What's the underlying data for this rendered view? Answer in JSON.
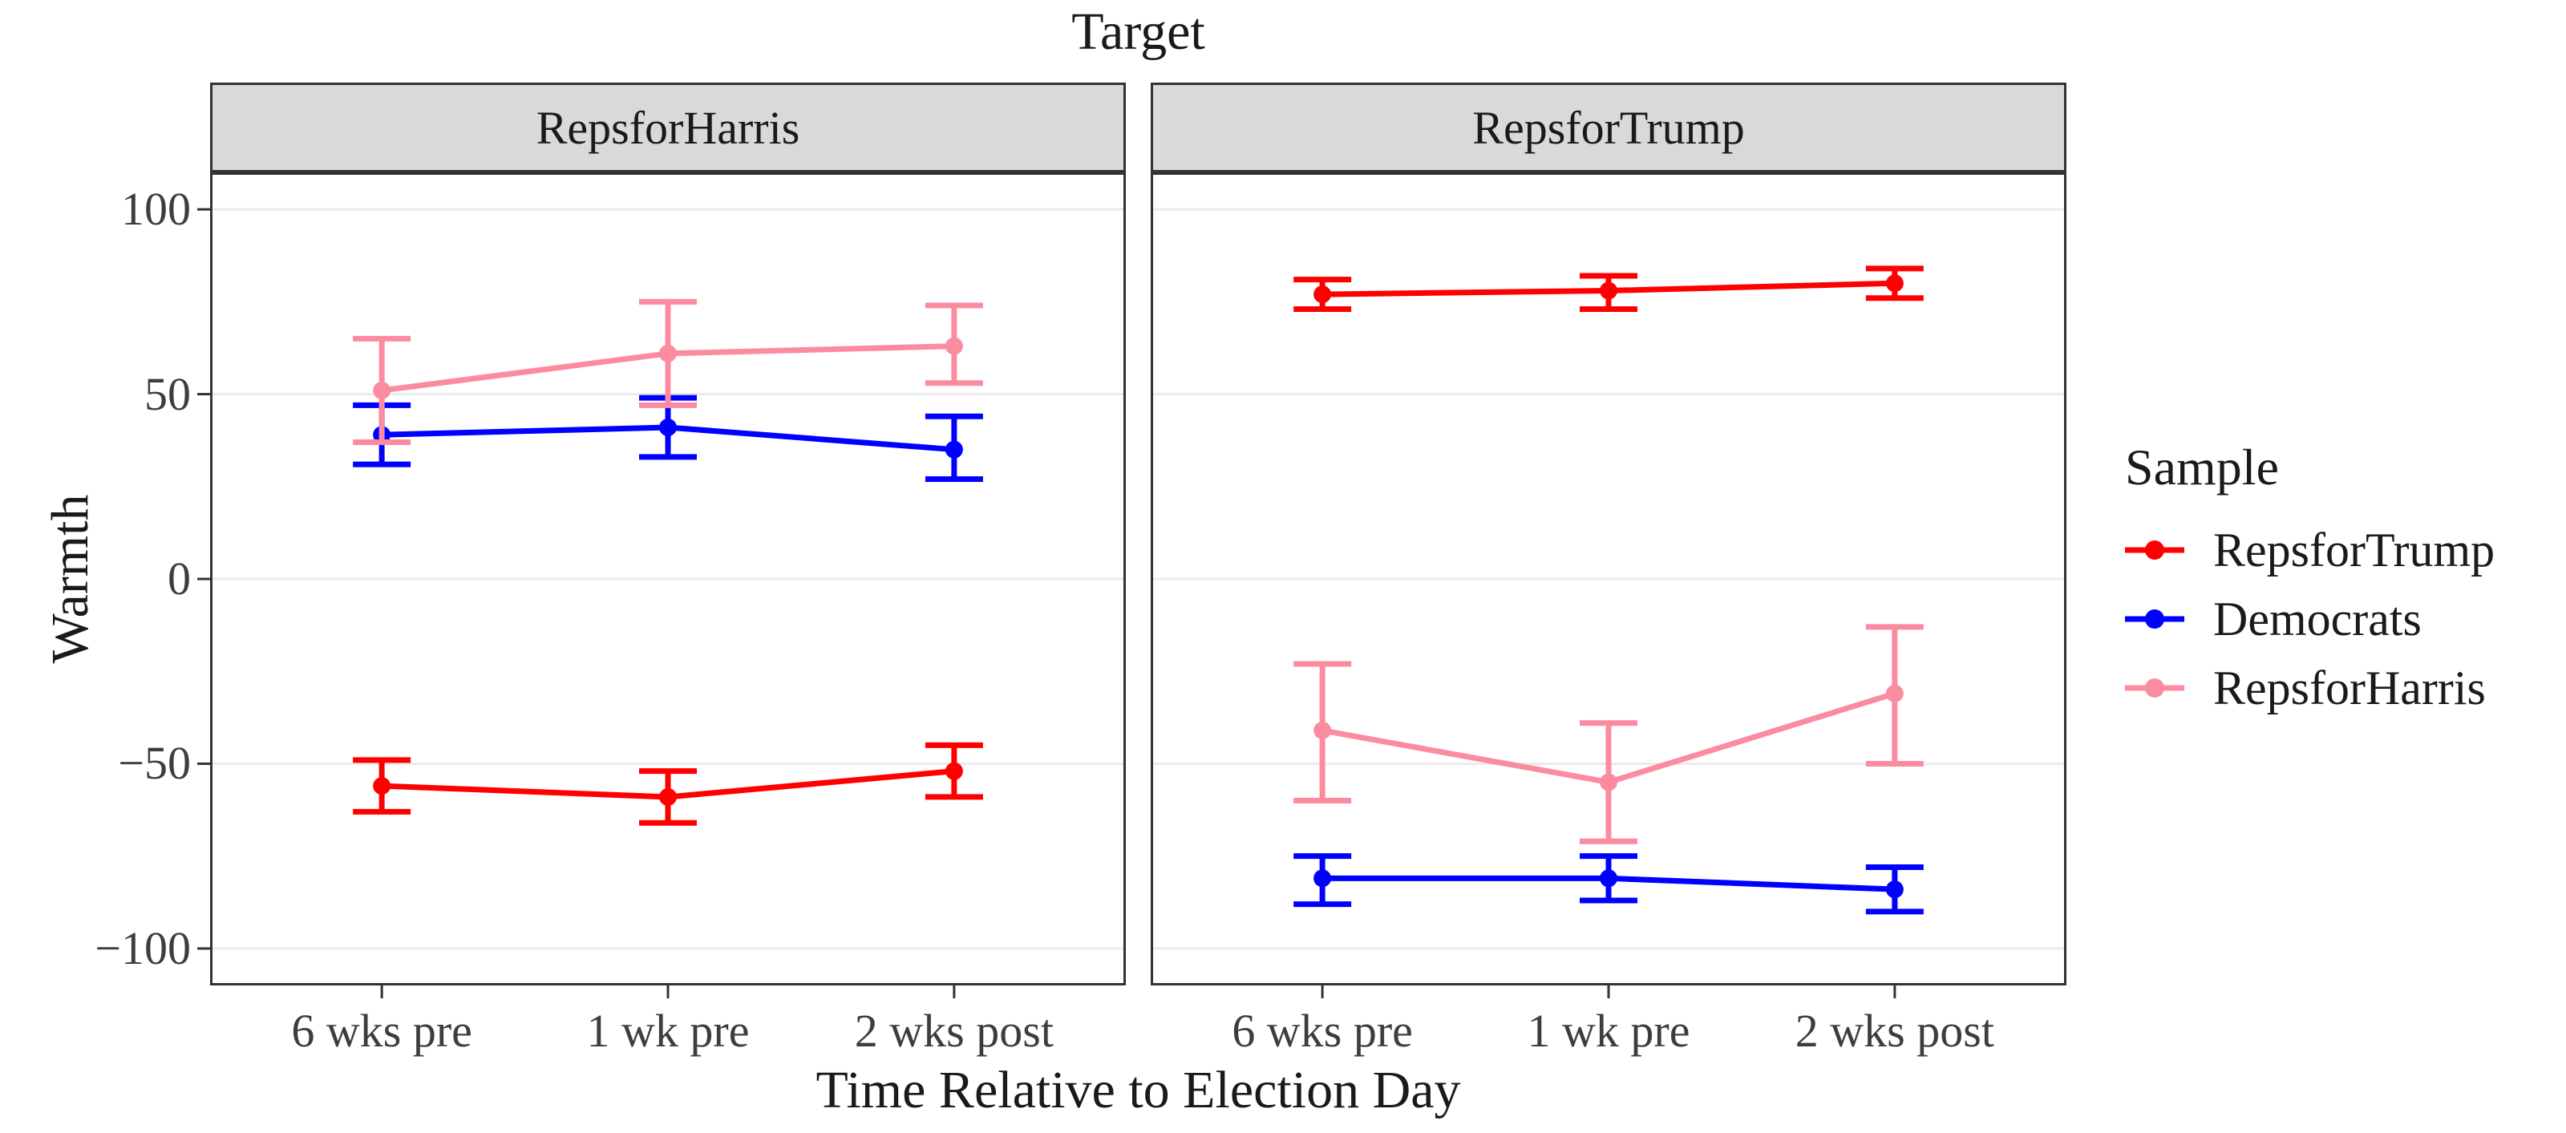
{
  "title": "Target",
  "axes": {
    "y": {
      "title": "Warmth",
      "ticks": [
        100,
        50,
        0,
        -50,
        -100
      ],
      "tick_labels": [
        "100",
        "50",
        "0",
        "−50",
        "−100"
      ]
    },
    "x": {
      "title": "Time Relative to Election Day",
      "categories": [
        "6 wks pre",
        "1 wk pre",
        "2 wks post"
      ]
    }
  },
  "legend": {
    "title": "Sample",
    "entries": [
      {
        "label": "RepsforTrump",
        "color": "#FF0000"
      },
      {
        "label": "Democrats",
        "color": "#0000FF"
      },
      {
        "label": "RepsforHarris",
        "color": "#FB8CA0"
      }
    ]
  },
  "colors": {
    "strip_fill": "#d9d9d9",
    "panel_border": "#333333",
    "gridline": "#ebebeb",
    "tick_mark": "#333333"
  },
  "chart_data": {
    "type": "line",
    "subtype": "pointrange-with-errorbars",
    "title": "Target",
    "facet_variable": "Target",
    "xlabel": "Time Relative to Election Day",
    "ylabel": "Warmth",
    "x_categories": [
      "6 wks pre",
      "1 wk pre",
      "2 wks post"
    ],
    "ylim": [
      -110,
      110
    ],
    "y_gridlines": [
      100,
      50,
      0,
      -50,
      -100
    ],
    "grid": "major-horizontal-only",
    "legend_position": "right",
    "legend_title": "Sample",
    "facets": [
      {
        "label": "RepsforHarris",
        "series": [
          {
            "name": "RepsforTrump",
            "color": "#FF0000",
            "values": [
              -56,
              -59,
              -52
            ],
            "ci_low": [
              -63,
              -66,
              -59
            ],
            "ci_high": [
              -49,
              -52,
              -45
            ]
          },
          {
            "name": "Democrats",
            "color": "#0000FF",
            "values": [
              39,
              41,
              35
            ],
            "ci_low": [
              31,
              33,
              27
            ],
            "ci_high": [
              47,
              49,
              44
            ]
          },
          {
            "name": "RepsforHarris",
            "color": "#FB8CA0",
            "values": [
              51,
              61,
              63
            ],
            "ci_low": [
              37,
              47,
              53
            ],
            "ci_high": [
              65,
              75,
              74
            ]
          }
        ]
      },
      {
        "label": "RepsforTrump",
        "series": [
          {
            "name": "RepsforTrump",
            "color": "#FF0000",
            "values": [
              77,
              78,
              80
            ],
            "ci_low": [
              73,
              73,
              76
            ],
            "ci_high": [
              81,
              82,
              84
            ]
          },
          {
            "name": "Democrats",
            "color": "#0000FF",
            "values": [
              -81,
              -81,
              -84
            ],
            "ci_low": [
              -88,
              -87,
              -90
            ],
            "ci_high": [
              -75,
              -75,
              -78
            ]
          },
          {
            "name": "RepsforHarris",
            "color": "#FB8CA0",
            "values": [
              -41,
              -55,
              -31
            ],
            "ci_low": [
              -60,
              -71,
              -50
            ],
            "ci_high": [
              -23,
              -39,
              -13
            ]
          }
        ]
      }
    ]
  }
}
